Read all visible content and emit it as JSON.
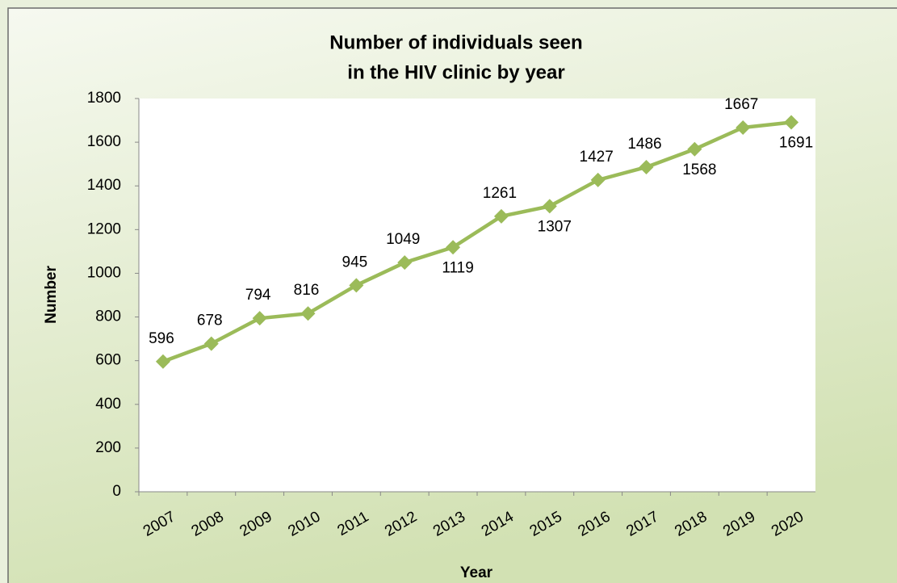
{
  "chart_data": {
    "type": "line",
    "title": [
      "Number of individuals seen",
      "in the HIV clinic by year"
    ],
    "x_label": "Year",
    "y_label": "Number",
    "categories": [
      "2007",
      "2008",
      "2009",
      "2010",
      "2011",
      "2012",
      "2013",
      "2014",
      "2015",
      "2016",
      "2017",
      "2018",
      "2019",
      "2020"
    ],
    "values": [
      596,
      678,
      794,
      816,
      945,
      1049,
      1119,
      1261,
      1307,
      1427,
      1486,
      1568,
      1667,
      1691
    ],
    "color": "#9bbb59",
    "ylim": [
      0,
      1800
    ],
    "yticks": [
      0,
      200,
      400,
      600,
      800,
      1000,
      1200,
      1400,
      1600,
      1800
    ],
    "grid": false
  }
}
